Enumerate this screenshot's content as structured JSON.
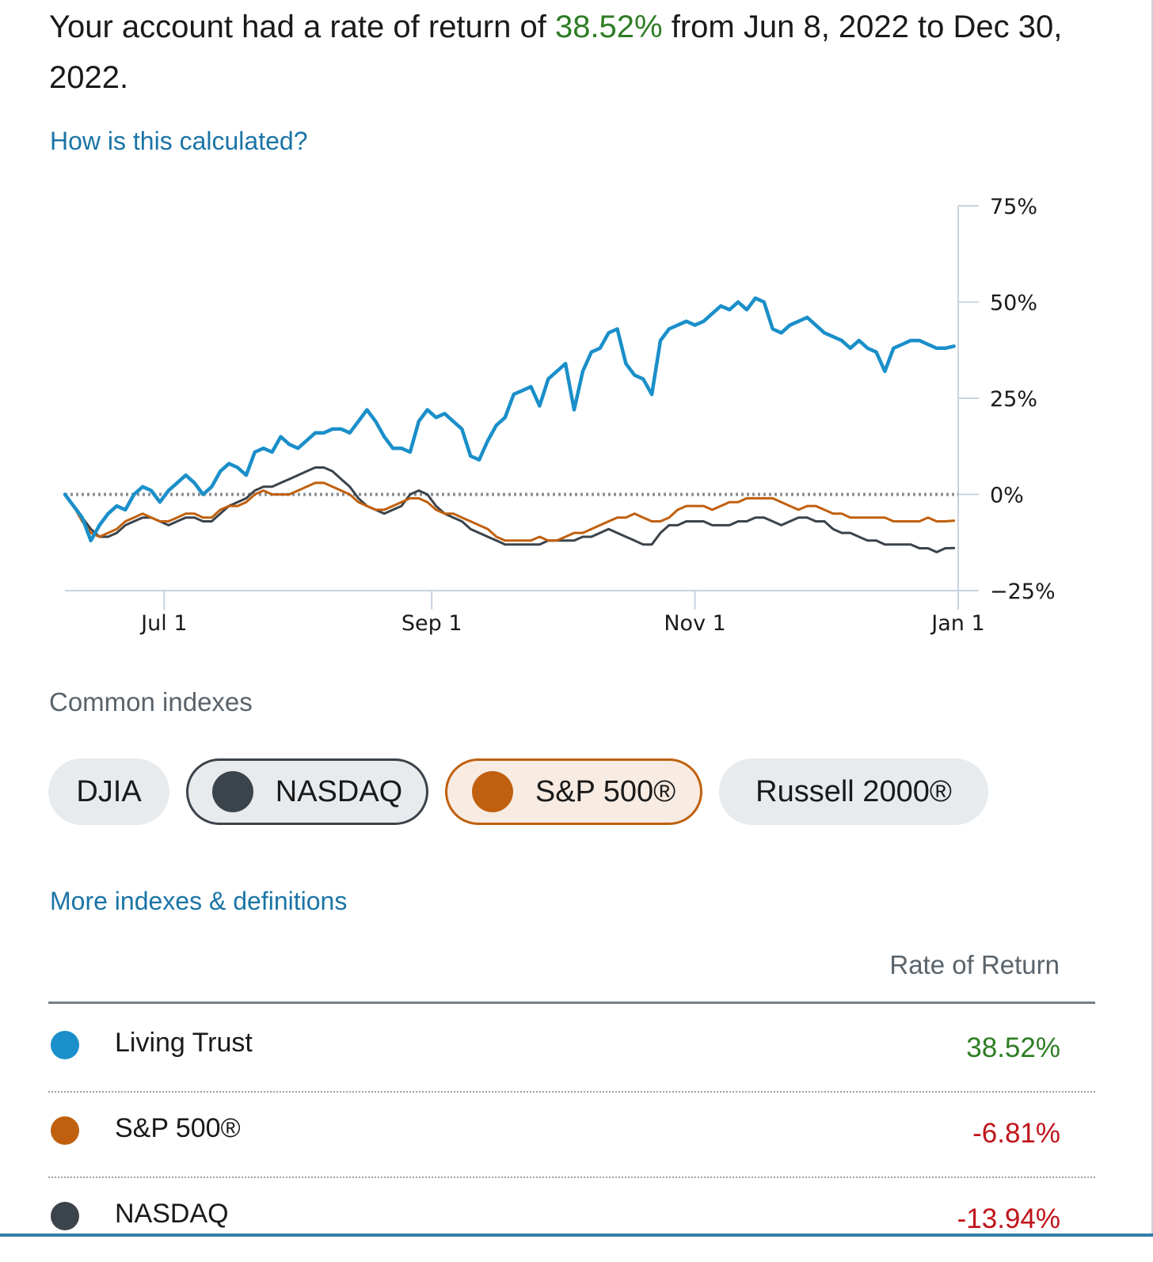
{
  "summary": {
    "prefix": "Your account had a rate of return of ",
    "rate": "38.52%",
    "suffix": " from Jun 8, 2022 to Dec 30, 2022."
  },
  "links": {
    "calculation": "How is this calculated?",
    "more_indexes": "More indexes & definitions"
  },
  "chart_data": {
    "type": "line",
    "x_label": "",
    "y_label": "",
    "y_ticks": [
      "75%",
      "50%",
      "25%",
      "0%",
      "−25%"
    ],
    "ylim": [
      -25,
      75
    ],
    "x_ticks": [
      "Jul 1",
      "Sep 1",
      "Nov 1",
      "Jan 1"
    ],
    "x_range_days": [
      0,
      207
    ],
    "x_tick_days": [
      23,
      85,
      146,
      207
    ],
    "baseline": 0,
    "series": [
      {
        "name": "Living Trust",
        "color": "#1a8fc9",
        "x": [
          0,
          2,
          4,
          6,
          8,
          10,
          12,
          14,
          16,
          18,
          20,
          22,
          24,
          26,
          28,
          30,
          32,
          34,
          36,
          38,
          40,
          42,
          44,
          46,
          48,
          50,
          52,
          54,
          56,
          58,
          60,
          62,
          64,
          66,
          68,
          70,
          72,
          74,
          76,
          78,
          80,
          82,
          84,
          86,
          88,
          90,
          92,
          94,
          96,
          98,
          100,
          102,
          104,
          106,
          108,
          110,
          112,
          114,
          116,
          118,
          120,
          122,
          124,
          126,
          128,
          130,
          132,
          134,
          136,
          138,
          140,
          142,
          144,
          146,
          148,
          150,
          152,
          154,
          156,
          158,
          160,
          162,
          164,
          166,
          168,
          170,
          172,
          174,
          176,
          178,
          180,
          182,
          184,
          186,
          188,
          190,
          192,
          194,
          196,
          198,
          200,
          202,
          204,
          206
        ],
        "y": [
          0,
          -3,
          -6,
          -12,
          -8,
          -5,
          -3,
          -4,
          0,
          2,
          1,
          -2,
          1,
          3,
          5,
          3,
          0,
          2,
          6,
          8,
          7,
          5,
          11,
          12,
          11,
          15,
          13,
          12,
          14,
          16,
          16,
          17,
          17,
          16,
          19,
          22,
          19,
          15,
          12,
          12,
          11,
          19,
          22,
          20,
          21,
          19,
          17,
          10,
          9,
          14,
          18,
          20,
          26,
          27,
          28,
          23,
          30,
          32,
          34,
          22,
          32,
          37,
          38,
          42,
          43,
          34,
          31,
          30,
          26,
          40,
          43,
          44,
          45,
          44,
          45,
          47,
          49,
          48,
          50,
          48,
          51,
          50,
          43,
          42,
          44,
          45,
          46,
          44,
          42,
          41,
          40,
          38,
          40,
          38,
          37,
          32,
          38,
          39,
          40,
          40,
          39,
          38,
          38,
          38.52
        ]
      },
      {
        "name": "S&P 500®",
        "color": "#c0600e",
        "x": [
          0,
          2,
          4,
          6,
          8,
          10,
          12,
          14,
          16,
          18,
          20,
          22,
          24,
          26,
          28,
          30,
          32,
          34,
          36,
          38,
          40,
          42,
          44,
          46,
          48,
          50,
          52,
          54,
          56,
          58,
          60,
          62,
          64,
          66,
          68,
          70,
          72,
          74,
          76,
          78,
          80,
          82,
          84,
          86,
          88,
          90,
          92,
          94,
          96,
          98,
          100,
          102,
          104,
          106,
          108,
          110,
          112,
          114,
          116,
          118,
          120,
          122,
          124,
          126,
          128,
          130,
          132,
          134,
          136,
          138,
          140,
          142,
          144,
          146,
          148,
          150,
          152,
          154,
          156,
          158,
          160,
          162,
          164,
          166,
          168,
          170,
          172,
          174,
          176,
          178,
          180,
          182,
          184,
          186,
          188,
          190,
          192,
          194,
          196,
          198,
          200,
          202,
          204,
          206
        ],
        "y": [
          0,
          -3,
          -7,
          -10,
          -11,
          -10,
          -9,
          -7,
          -6,
          -5,
          -6,
          -7,
          -7,
          -6,
          -5,
          -5,
          -6,
          -6,
          -4,
          -3,
          -3,
          -2,
          0,
          1,
          0,
          0,
          0,
          1,
          2,
          3,
          3,
          2,
          1,
          0,
          -2,
          -3,
          -4,
          -4,
          -3,
          -2,
          -1,
          -1,
          -2,
          -4,
          -5,
          -5,
          -6,
          -7,
          -8,
          -9,
          -11,
          -12,
          -12,
          -12,
          -12,
          -11,
          -12,
          -12,
          -11,
          -10,
          -10,
          -9,
          -8,
          -7,
          -6,
          -6,
          -5,
          -6,
          -7,
          -7,
          -6,
          -4,
          -3,
          -3,
          -3,
          -4,
          -3,
          -2,
          -2,
          -1,
          -1,
          -1,
          -1,
          -2,
          -3,
          -4,
          -3,
          -3,
          -4,
          -5,
          -5,
          -6,
          -6,
          -6,
          -6,
          -6,
          -7,
          -7,
          -7,
          -7,
          -6,
          -7,
          -7,
          -6.81
        ]
      },
      {
        "name": "NASDAQ",
        "color": "#3b434b",
        "x": [
          0,
          2,
          4,
          6,
          8,
          10,
          12,
          14,
          16,
          18,
          20,
          22,
          24,
          26,
          28,
          30,
          32,
          34,
          36,
          38,
          40,
          42,
          44,
          46,
          48,
          50,
          52,
          54,
          56,
          58,
          60,
          62,
          64,
          66,
          68,
          70,
          72,
          74,
          76,
          78,
          80,
          82,
          84,
          86,
          88,
          90,
          92,
          94,
          96,
          98,
          100,
          102,
          104,
          106,
          108,
          110,
          112,
          114,
          116,
          118,
          120,
          122,
          124,
          126,
          128,
          130,
          132,
          134,
          136,
          138,
          140,
          142,
          144,
          146,
          148,
          150,
          152,
          154,
          156,
          158,
          160,
          162,
          164,
          166,
          168,
          170,
          172,
          174,
          176,
          178,
          180,
          182,
          184,
          186,
          188,
          190,
          192,
          194,
          196,
          198,
          200,
          202,
          204,
          206
        ],
        "y": [
          0,
          -3,
          -6,
          -9,
          -11,
          -11,
          -10,
          -8,
          -7,
          -6,
          -6,
          -7,
          -8,
          -7,
          -6,
          -6,
          -7,
          -7,
          -5,
          -3,
          -2,
          -1,
          1,
          2,
          2,
          3,
          4,
          5,
          6,
          7,
          7,
          6,
          4,
          2,
          -1,
          -3,
          -4,
          -5,
          -4,
          -3,
          0,
          1,
          0,
          -3,
          -5,
          -6,
          -7,
          -9,
          -10,
          -11,
          -12,
          -13,
          -13,
          -13,
          -13,
          -13,
          -12,
          -12,
          -12,
          -12,
          -11,
          -11,
          -10,
          -9,
          -10,
          -11,
          -12,
          -13,
          -13,
          -10,
          -8,
          -8,
          -7,
          -7,
          -7,
          -8,
          -8,
          -8,
          -7,
          -7,
          -6,
          -6,
          -7,
          -8,
          -7,
          -6,
          -6,
          -7,
          -7,
          -9,
          -10,
          -10,
          -11,
          -12,
          -12,
          -13,
          -13,
          -13,
          -13,
          -14,
          -14,
          -15,
          -14,
          -13.94
        ]
      }
    ]
  },
  "common_indexes": {
    "label": "Common indexes",
    "chips": [
      {
        "label": "DJIA"
      },
      {
        "label": "NASDAQ",
        "color": "#3b434b"
      },
      {
        "label": "S&P 500®",
        "color": "#c0600e"
      },
      {
        "label": "Russell 2000®"
      }
    ]
  },
  "returns_table": {
    "header": "Rate of Return",
    "rows": [
      {
        "name": "Living Trust",
        "value": "38.52%",
        "color": "#1a8fc9"
      },
      {
        "name": "S&P 500®",
        "value": "-6.81%",
        "color": "#c0600e"
      },
      {
        "name": "NASDAQ",
        "value": "-13.94%",
        "color": "#3b434b"
      }
    ]
  }
}
